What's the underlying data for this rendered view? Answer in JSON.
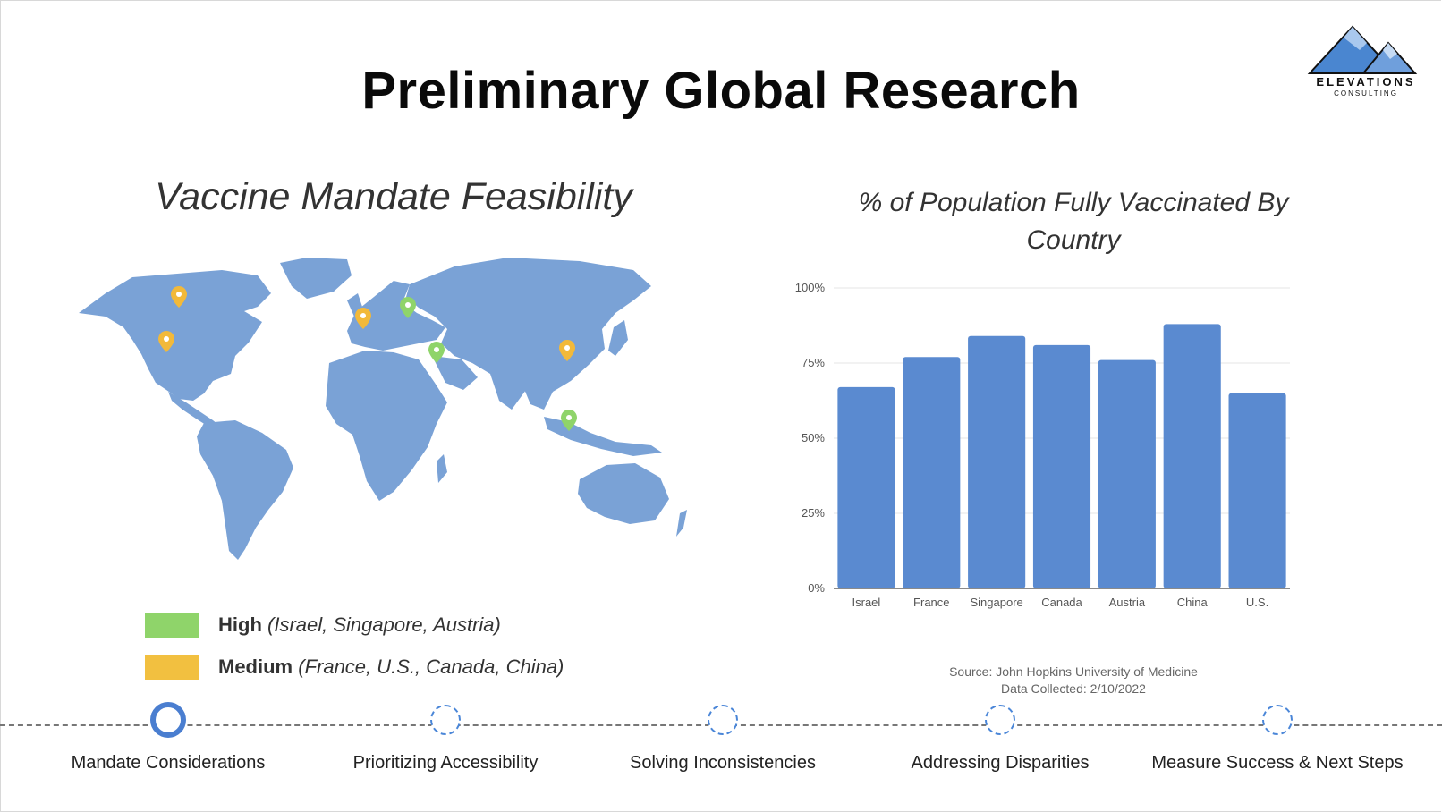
{
  "header": {
    "title": "Preliminary Global Research"
  },
  "logo": {
    "name": "ELEVATIONS",
    "subtitle": "CONSULTING",
    "icon": "mountain-logo-icon"
  },
  "map_panel": {
    "title": "Vaccine Mandate Feasibility",
    "legend": [
      {
        "level": "High",
        "countries": "(Israel, Singapore, Austria)",
        "color": "#8fd46a"
      },
      {
        "level": "Medium",
        "countries": "(France, U.S., Canada, China)",
        "color": "#f2c040"
      }
    ],
    "colors": {
      "land": "#7aa2d6",
      "high_pin": "#8fd46a",
      "medium_pin": "#f2b93a"
    }
  },
  "chart_data": {
    "type": "bar",
    "title": "% of Population Fully Vaccinated By Country",
    "categories": [
      "Israel",
      "France",
      "Singapore",
      "Canada",
      "Austria",
      "China",
      "U.S."
    ],
    "values": [
      67,
      77,
      84,
      81,
      76,
      88,
      65
    ],
    "ylim": [
      0,
      100
    ],
    "yticks": [
      "0%",
      "25%",
      "50%",
      "75%",
      "100%"
    ],
    "grid": true,
    "bar_color": "#5a8ad0"
  },
  "source": {
    "line1": "Source: John Hopkins University of Medicine",
    "line2": "Data Collected: 2/10/2022"
  },
  "timeline": {
    "steps": [
      {
        "label": "Mandate Considerations",
        "active": true
      },
      {
        "label": "Prioritizing Accessibility",
        "active": false
      },
      {
        "label": "Solving Inconsistencies",
        "active": false
      },
      {
        "label": "Addressing Disparities",
        "active": false
      },
      {
        "label": "Measure Success & Next Steps",
        "active": false
      }
    ]
  }
}
